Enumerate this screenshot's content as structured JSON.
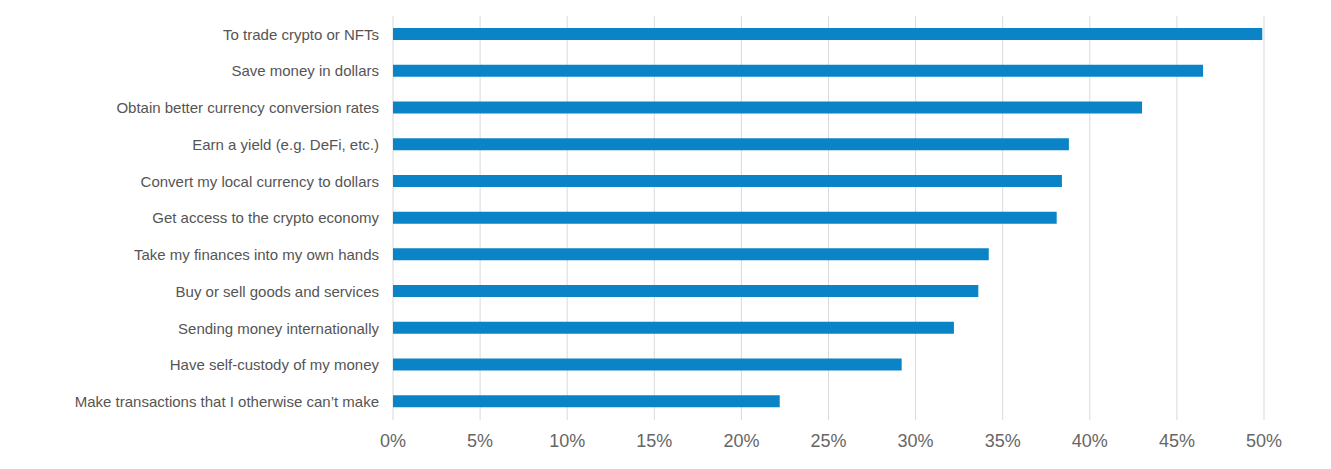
{
  "chart_data": {
    "type": "bar",
    "orientation": "horizontal",
    "categories": [
      "To trade crypto or NFTs",
      "Save money in dollars",
      "Obtain better currency conversion rates",
      "Earn a yield (e.g. DeFi, etc.)",
      "Convert my local currency to dollars",
      "Get access to the crypto economy",
      "Take my finances into my own hands",
      "Buy or sell goods and services",
      "Sending money internationally",
      "Have self-custody of my money",
      "Make transactions that I otherwise can’t make"
    ],
    "values": [
      49.9,
      46.5,
      43.0,
      38.8,
      38.4,
      38.1,
      34.2,
      33.6,
      32.2,
      29.2,
      22.2
    ],
    "color": "#0a84c6",
    "xlim": [
      0,
      50
    ],
    "xticks": [
      {
        "value": 0,
        "label": "0%"
      },
      {
        "value": 5,
        "label": "5%"
      },
      {
        "value": 10,
        "label": "10%"
      },
      {
        "value": 15,
        "label": "15%"
      },
      {
        "value": 20,
        "label": "20%"
      },
      {
        "value": 25,
        "label": "25%"
      },
      {
        "value": 30,
        "label": "30%"
      },
      {
        "value": 35,
        "label": "35%"
      },
      {
        "value": 40,
        "label": "40%"
      },
      {
        "value": 45,
        "label": "45%"
      },
      {
        "value": 50,
        "label": "50%"
      }
    ],
    "grid": true
  }
}
